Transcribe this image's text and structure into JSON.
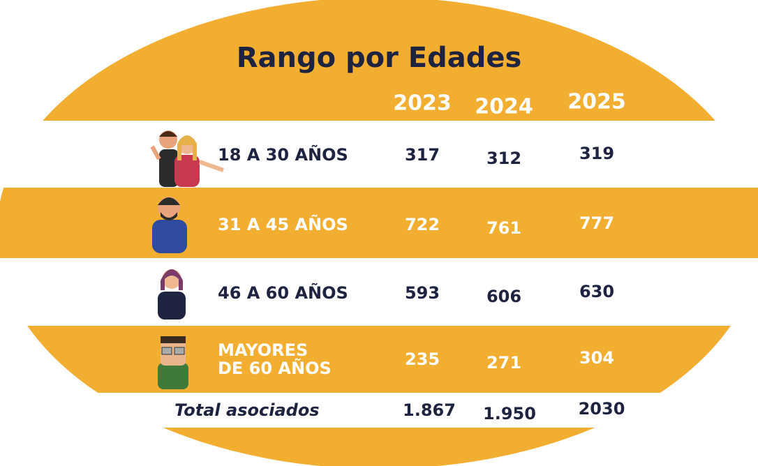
{
  "header": {
    "title": "Rango por Edades",
    "years": [
      "2023",
      "2024",
      "2025"
    ]
  },
  "table": {
    "rows": [
      {
        "label": "18 A 30 AÑOS",
        "values": [
          "317",
          "312",
          "319"
        ]
      },
      {
        "label": "31 A 45 AÑOS",
        "values": [
          "722",
          "761",
          "777"
        ]
      },
      {
        "label": "46 A 60 AÑOS",
        "values": [
          "593",
          "606",
          "630"
        ]
      },
      {
        "label": [
          "MAYORES",
          "DE 60 AÑOS"
        ],
        "values": [
          "235",
          "271",
          "304"
        ]
      }
    ],
    "total": {
      "label": "Total asociados",
      "values": [
        "1.867",
        "1.950",
        "2030"
      ]
    }
  }
}
